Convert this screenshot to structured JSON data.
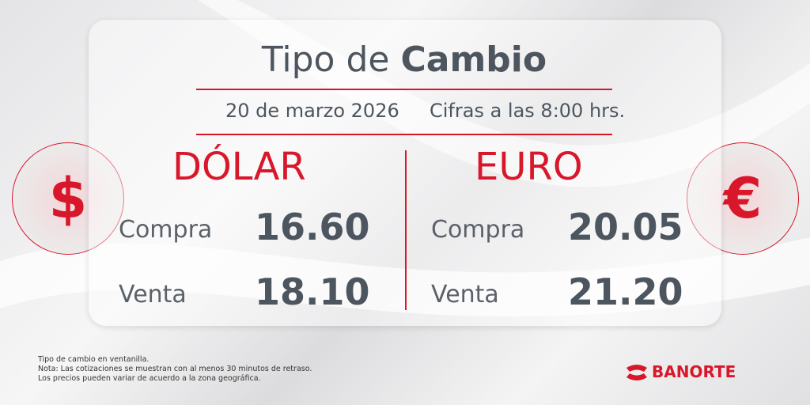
{
  "header": {
    "title_light": "Tipo de",
    "title_bold": "Cambio",
    "date": "20 de marzo 2026",
    "time_note": "Cifras a las 8:00 hrs."
  },
  "icons": {
    "dollar": "$",
    "euro": "€"
  },
  "currencies": [
    {
      "name": "DÓLAR",
      "rows": [
        {
          "label": "Compra",
          "value": "16.60"
        },
        {
          "label": "Venta",
          "value": "18.10"
        }
      ]
    },
    {
      "name": "EURO",
      "rows": [
        {
          "label": "Compra",
          "value": "20.05"
        },
        {
          "label": "Venta",
          "value": "21.20"
        }
      ]
    }
  ],
  "footer": {
    "notes": [
      "Tipo de cambio en ventanilla.",
      "Nota: Las cotizaciones se muestran con al menos 30 minutos de retraso.",
      "Los precios pueden variar de acuerdo a la zona geográfica."
    ],
    "brand": "BANORTE"
  }
}
